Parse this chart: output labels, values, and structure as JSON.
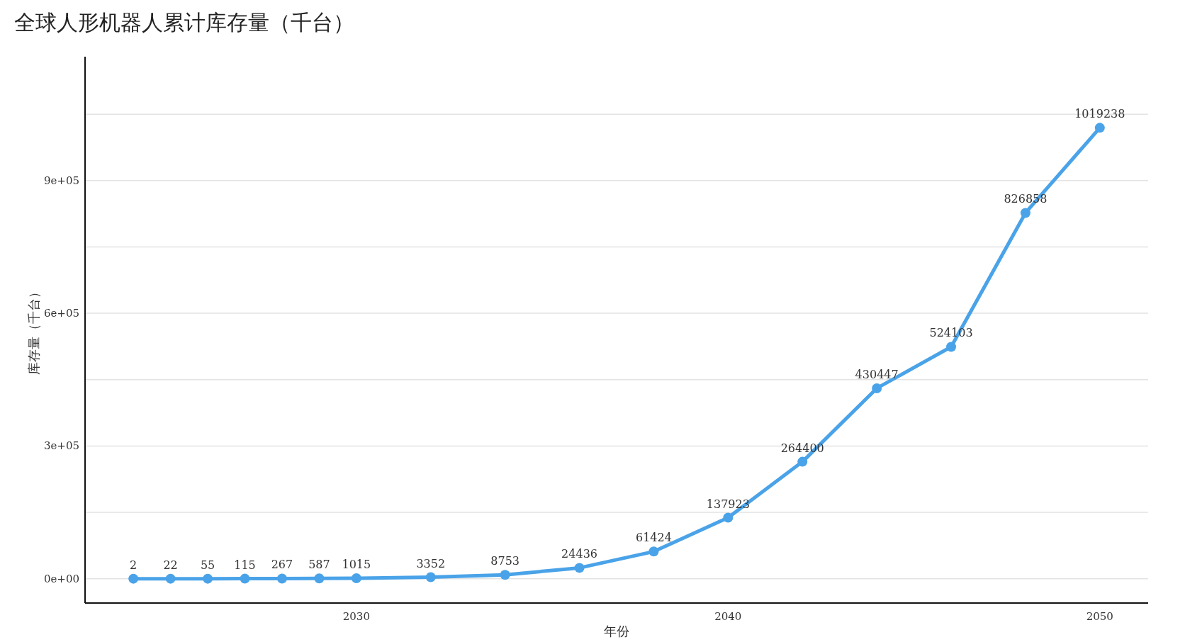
{
  "chart_data": {
    "type": "line",
    "title": "全球人形机器人累计库存量（千台）",
    "xlabel": "年份",
    "ylabel": "库存量（千台）",
    "x": [
      2024,
      2025,
      2026,
      2027,
      2028,
      2029,
      2030,
      2032,
      2034,
      2036,
      2038,
      2040,
      2042,
      2044,
      2046,
      2048,
      2050
    ],
    "series": [
      {
        "color": "#4aa3e8",
        "values": [
          2,
          22,
          55,
          115,
          267,
          587,
          1015,
          3352,
          8753,
          24436,
          61424,
          137923,
          264400,
          430447,
          524103,
          826858,
          1019238
        ]
      }
    ],
    "xlim": [
      2022.7,
      2051.3
    ],
    "xticks": [
      2030,
      2040,
      2050
    ],
    "ylim": [
      -55000,
      1180000
    ],
    "yticks": [
      {
        "value": 0,
        "label": "0e+00"
      },
      {
        "value": 150000,
        "label": null
      },
      {
        "value": 300000,
        "label": "3e+05"
      },
      {
        "value": 450000,
        "label": null
      },
      {
        "value": 600000,
        "label": "6e+05"
      },
      {
        "value": 750000,
        "label": null
      },
      {
        "value": 900000,
        "label": "9e+05"
      },
      {
        "value": 1050000,
        "label": null
      }
    ],
    "grid": "y",
    "marker": "circle",
    "line_style": "solid",
    "data_labels": true
  }
}
